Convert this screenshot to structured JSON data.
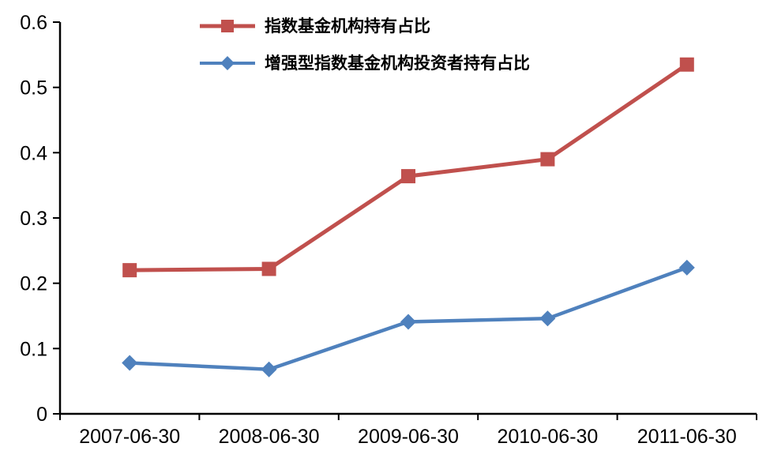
{
  "chart_data": {
    "type": "line",
    "title": "",
    "xlabel": "",
    "ylabel": "",
    "categories": [
      "2007-06-30",
      "2008-06-30",
      "2009-06-30",
      "2010-06-30",
      "2011-06-30"
    ],
    "series": [
      {
        "name": "指数基金机构持有占比",
        "color": "#C0504D",
        "marker": "square",
        "values": [
          0.22,
          0.222,
          0.364,
          0.39,
          0.535
        ]
      },
      {
        "name": "增强型指数基金机构投资者持有占比",
        "color": "#4F81BD",
        "marker": "diamond",
        "values": [
          0.078,
          0.068,
          0.141,
          0.146,
          0.224
        ]
      }
    ],
    "ylim": [
      0,
      0.6
    ],
    "yticks": [
      "0",
      "0.1",
      "0.2",
      "0.3",
      "0.4",
      "0.5",
      "0.6"
    ],
    "grid": false,
    "legend_position": "top-left-inside",
    "axis_color": "#000000"
  }
}
